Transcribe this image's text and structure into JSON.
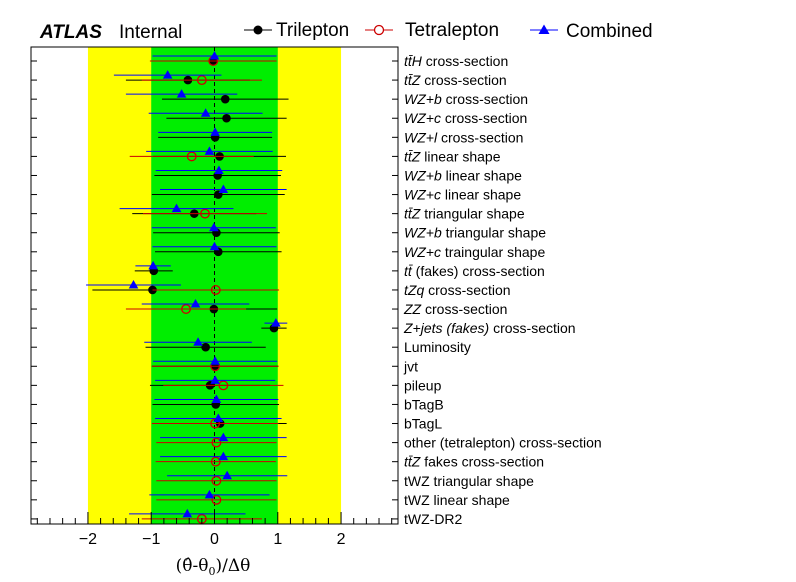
{
  "header": {
    "experiment": "ATLAS",
    "status": "Internal"
  },
  "legend": {
    "items": [
      {
        "label": "Trilepton",
        "marker": "filled-circle",
        "color": "#000000"
      },
      {
        "label": "Tetralepton",
        "marker": "open-circle",
        "color": "#cc0000"
      },
      {
        "label": "Combined",
        "marker": "filled-triangle",
        "color": "#0000ff"
      }
    ]
  },
  "colors": {
    "band_1sigma": "#00ee00",
    "band_2sigma": "#ffff00",
    "trilepton": "#000000",
    "tetralepton": "#cc0000",
    "combined": "#0000ff"
  },
  "chart_data": {
    "type": "scatter",
    "orientation": "horizontal",
    "xlabel": "(θ̂-θ0)/Δθ",
    "xlim": [
      -2.9,
      2.9
    ],
    "xticks": [
      "−2",
      "−1",
      "0",
      "1",
      "2"
    ],
    "xtick_values": [
      -2,
      -1,
      0,
      1,
      2
    ],
    "bands": {
      "one_sigma": [
        -1,
        1
      ],
      "two_sigma": [
        -2,
        2
      ]
    },
    "reference_line": 0,
    "categories": [
      "t t̄ H cross-section",
      "t t̄ Z cross-section",
      "WZ+b cross-section",
      "WZ+c cross-section",
      "WZ+l cross-section",
      "t t̄ Z linear shape",
      "WZ+b linear shape",
      "WZ+c linear shape",
      "t t̄ Z triangular shape",
      "WZ+b triangular shape",
      "WZ+c traingular shape",
      "t t̄ (fakes) cross-section",
      "tZq cross-section",
      "ZZ cross-section",
      "Z+jets (fakes) cross-section",
      "Luminosity",
      "jvt",
      "pileup",
      "bTagB",
      "bTagL",
      "other (tetralepton) cross-section",
      "t t̄ Z fakes cross-section",
      "tWZ triangular shape",
      "tWZ linear shape",
      "tWZ-DR2"
    ],
    "series": [
      {
        "name": "Trilepton",
        "values": [
          -0.02,
          -0.42,
          0.17,
          0.19,
          0.01,
          0.08,
          0.05,
          0.06,
          -0.32,
          0.03,
          0.06,
          -0.96,
          -0.98,
          -0.01,
          0.94,
          -0.14,
          0.01,
          -0.07,
          0.02,
          0.09,
          null,
          null,
          null,
          null,
          null
        ],
        "errors": [
          1.0,
          0.98,
          1.0,
          0.95,
          0.9,
          1.05,
          1.0,
          1.05,
          0.98,
          1.0,
          1.0,
          0.3,
          0.95,
          1.0,
          0.2,
          0.95,
          1.0,
          0.95,
          1.0,
          1.05,
          null,
          null,
          null,
          null,
          null
        ]
      },
      {
        "name": "Tetralepton",
        "values": [
          -0.02,
          -0.2,
          null,
          null,
          null,
          -0.36,
          null,
          null,
          -0.15,
          null,
          null,
          null,
          0.02,
          -0.45,
          null,
          null,
          0.01,
          0.14,
          null,
          0.01,
          0.03,
          0.02,
          0.03,
          0.03,
          -0.2
        ],
        "errors": [
          1.0,
          0.95,
          null,
          null,
          null,
          0.98,
          null,
          null,
          0.98,
          null,
          null,
          null,
          1.0,
          0.95,
          null,
          null,
          1.0,
          0.95,
          null,
          1.0,
          0.95,
          0.95,
          0.95,
          0.95,
          0.95
        ]
      },
      {
        "name": "Combined",
        "values": [
          0.0,
          -0.74,
          -0.52,
          -0.14,
          0.01,
          -0.08,
          0.07,
          0.14,
          -0.6,
          -0.01,
          0.0,
          -0.97,
          -1.28,
          -0.3,
          0.97,
          -0.26,
          0.01,
          0.01,
          0.03,
          0.06,
          0.14,
          0.14,
          0.2,
          -0.08,
          -0.43
        ],
        "errors": [
          0.98,
          0.85,
          0.88,
          0.9,
          0.9,
          1.0,
          1.0,
          1.0,
          0.9,
          0.98,
          0.98,
          0.28,
          0.75,
          0.85,
          0.18,
          0.85,
          0.98,
          0.95,
          0.98,
          1.0,
          1.0,
          1.0,
          0.95,
          0.95,
          0.92
        ]
      }
    ]
  }
}
